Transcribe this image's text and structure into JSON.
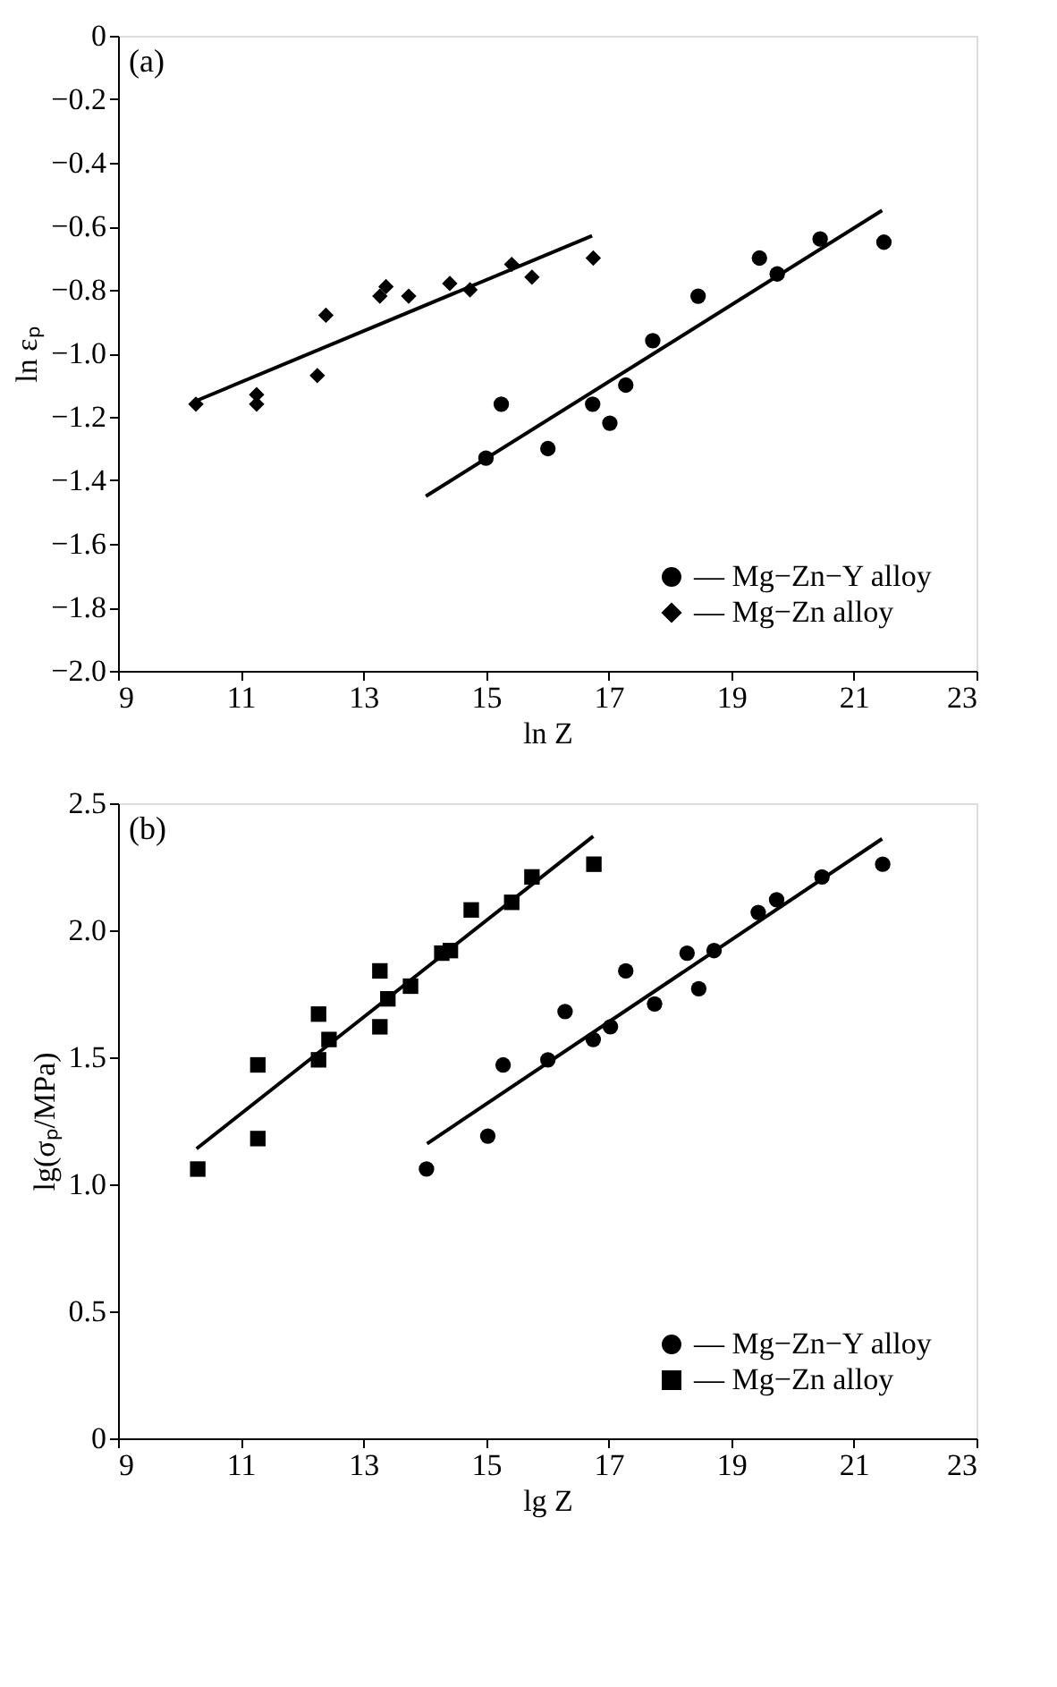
{
  "chart_data": [
    {
      "type": "scatter",
      "annotations": [
        "(a)"
      ],
      "xlabel": "ln Z",
      "ylabel": "ln εₚ",
      "xlim": [
        9,
        23
      ],
      "xticks": [
        9,
        11,
        13,
        15,
        17,
        19,
        21,
        23
      ],
      "ylim": [
        -2.0,
        0
      ],
      "yticks": [
        {
          "value": -2.0,
          "label": "−2.0"
        },
        {
          "value": -1.8,
          "label": "−1.8"
        },
        {
          "value": -1.6,
          "label": "−1.6"
        },
        {
          "value": -1.4,
          "label": "−1.4"
        },
        {
          "value": -1.2,
          "label": "−1.2"
        },
        {
          "value": -1.0,
          "label": "−1.0"
        },
        {
          "value": -0.8,
          "label": "−0.8"
        },
        {
          "value": -0.6,
          "label": "−0.6"
        },
        {
          "value": -0.4,
          "label": "−0.4"
        },
        {
          "value": -0.2,
          "label": "−0.2"
        },
        0
      ],
      "grid": false,
      "legend": "bottom right",
      "series": [
        {
          "name": "— Mg−Zn−Y alloy",
          "marker": "circle",
          "color": "#000000",
          "x": [
            15.0,
            15.25,
            16.01,
            16.74,
            17.02,
            17.28,
            17.72,
            18.46,
            19.46,
            19.75,
            20.45,
            21.49
          ],
          "values": [
            -1.33,
            -1.16,
            -1.3,
            -1.16,
            -1.22,
            -1.1,
            -0.96,
            -0.82,
            -0.7,
            -0.75,
            -0.64,
            -0.65
          ]
        },
        {
          "name": "— Mg−Zn alloy",
          "marker": "diamond",
          "color": "#000000",
          "x": [
            10.27,
            11.26,
            11.26,
            12.25,
            12.39,
            13.27,
            13.37,
            13.74,
            14.41,
            14.74,
            15.42,
            15.75,
            16.75
          ],
          "values": [
            -1.16,
            -1.13,
            -1.16,
            -1.07,
            -0.88,
            -0.82,
            -0.79,
            -0.82,
            -0.78,
            -0.8,
            -0.72,
            -0.76,
            -0.7
          ]
        },
        {
          "type": "line",
          "color": "#000000",
          "x": [
            14.02,
            21.46
          ],
          "values": [
            -1.45,
            -0.55
          ]
        },
        {
          "type": "line",
          "color": "#000000",
          "x": [
            10.27,
            16.73
          ],
          "values": [
            -1.15,
            -0.63
          ]
        }
      ]
    },
    {
      "type": "scatter",
      "annotations": [
        "(b)"
      ],
      "xlabel": "lg Z",
      "ylabel": "lg(σₚ/MPa)",
      "xlim": [
        9,
        23
      ],
      "xticks": [
        9,
        11,
        13,
        15,
        17,
        19,
        21,
        23
      ],
      "ylim": [
        0,
        2.5
      ],
      "yticks": [
        0,
        0.5,
        {
          "value": 1.0,
          "label": "1.0"
        },
        1.5,
        {
          "value": 2.0,
          "label": "2.0"
        },
        2.5
      ],
      "grid": false,
      "legend": "bottom right",
      "series": [
        {
          "name": "— Mg−Zn−Y alloy",
          "marker": "circle",
          "color": "#000000",
          "x": [
            14.03,
            15.03,
            15.28,
            16.01,
            16.29,
            16.75,
            17.03,
            17.28,
            17.75,
            18.28,
            18.47,
            18.72,
            19.44,
            19.74,
            20.48,
            21.47
          ],
          "values": [
            1.06,
            1.19,
            1.47,
            1.49,
            1.68,
            1.57,
            1.62,
            1.84,
            1.71,
            1.91,
            1.77,
            1.92,
            2.07,
            2.12,
            2.21,
            2.26
          ]
        },
        {
          "name": "— Mg−Zn alloy",
          "marker": "square",
          "color": "#000000",
          "x": [
            10.3,
            11.28,
            11.28,
            12.27,
            12.27,
            12.44,
            13.27,
            13.27,
            13.4,
            13.77,
            14.28,
            14.42,
            14.76,
            15.42,
            15.75,
            16.76
          ],
          "values": [
            1.06,
            1.47,
            1.18,
            1.67,
            1.49,
            1.57,
            1.84,
            1.62,
            1.73,
            1.78,
            1.91,
            1.92,
            2.08,
            2.11,
            2.21,
            2.26
          ]
        },
        {
          "type": "line",
          "color": "#000000",
          "x": [
            14.04,
            21.46
          ],
          "values": [
            1.16,
            2.36
          ]
        },
        {
          "type": "line",
          "color": "#000000",
          "x": [
            10.28,
            16.75
          ],
          "values": [
            1.14,
            2.37
          ]
        }
      ]
    }
  ]
}
